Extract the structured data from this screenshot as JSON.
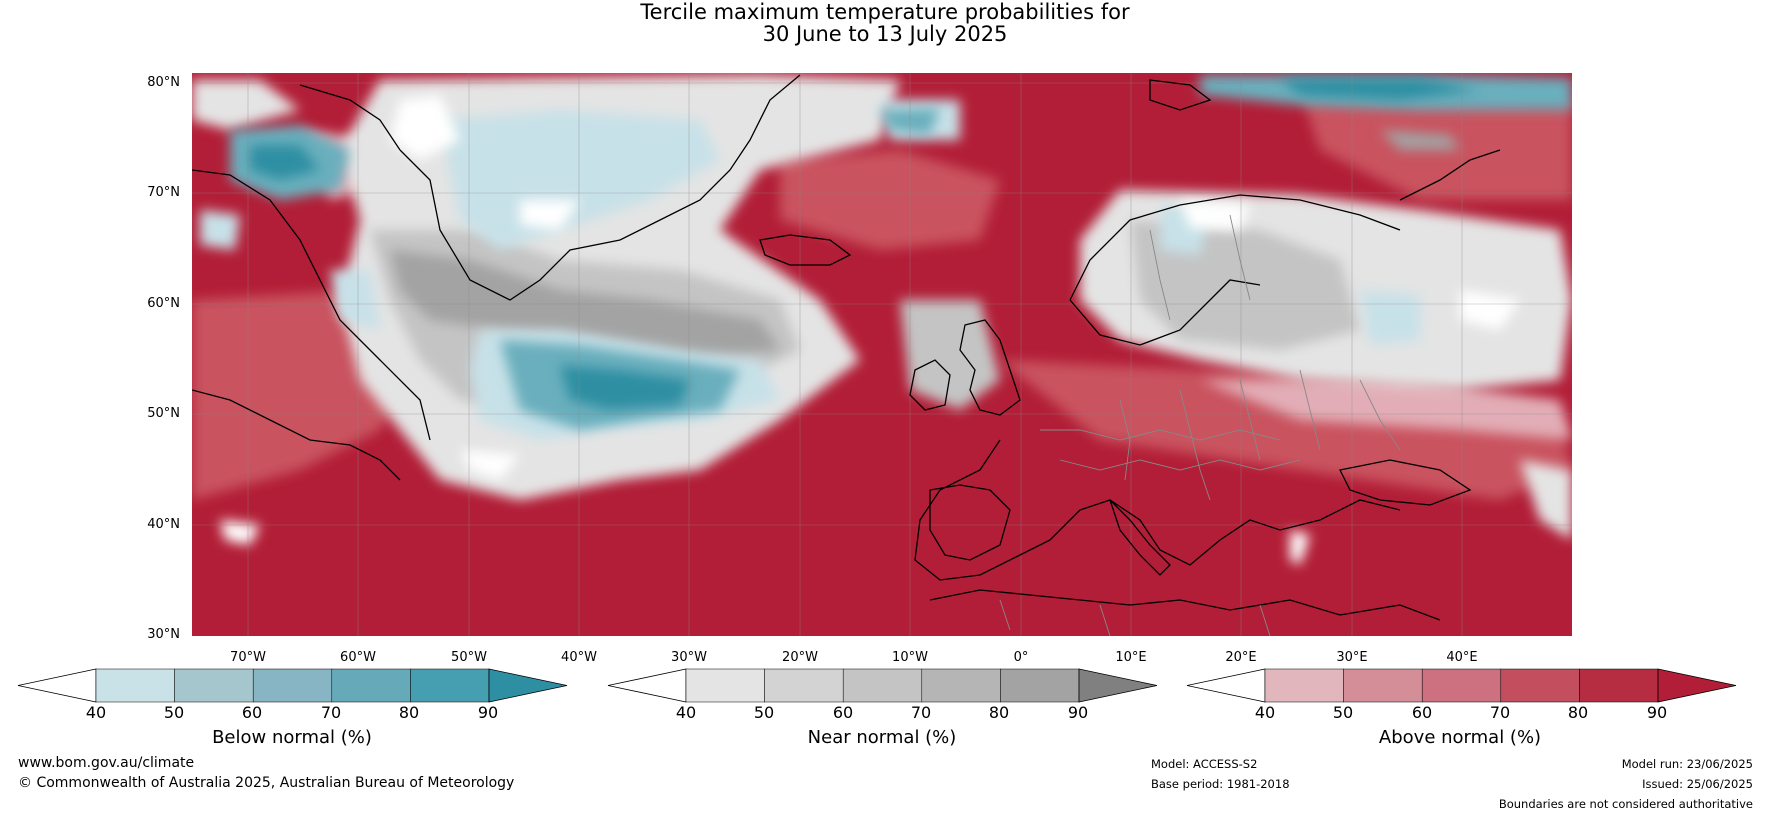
{
  "title": {
    "line1": "Tercile maximum temperature probabilities for",
    "line2": "30 June to 13 July 2025"
  },
  "map": {
    "latitude_labels": [
      "80°N",
      "70°N",
      "60°N",
      "50°N",
      "40°N",
      "30°N"
    ],
    "longitude_labels": [
      "70°W",
      "60°W",
      "50°W",
      "40°W",
      "30°W",
      "20°W",
      "10°W",
      "0°",
      "10°E",
      "20°E",
      "30°E",
      "40°E"
    ],
    "colors": {
      "above_dark": "#b21e37",
      "above_mid": "#c9535f",
      "above_light": "#e2adb6",
      "below_dark": "#2e8fa3",
      "below_mid": "#6aafbd",
      "below_light": "#c7e1e8",
      "near_dark": "#a3a3a3",
      "near_mid": "#c4c4c4",
      "near_light": "#e4e4e4",
      "coast": "#000000",
      "border": "#888888"
    }
  },
  "colorbars": [
    {
      "name": "Below normal (%)",
      "ticks": [
        "40",
        "50",
        "60",
        "70",
        "80",
        "90"
      ],
      "colors": [
        "#ffffff",
        "#c9e2e7",
        "#a5c6cd",
        "#87b5c3",
        "#66aab9",
        "#469fb1",
        "#2e8fa3"
      ]
    },
    {
      "name": "Near normal (%)",
      "ticks": [
        "40",
        "50",
        "60",
        "70",
        "80",
        "90"
      ],
      "colors": [
        "#ffffff",
        "#e4e4e4",
        "#d3d3d3",
        "#c4c4c4",
        "#b4b5b4",
        "#a3a3a3",
        "#808080"
      ]
    },
    {
      "name": "Above normal (%)",
      "ticks": [
        "40",
        "50",
        "60",
        "70",
        "80",
        "90"
      ],
      "colors": [
        "#ffffff",
        "#e2b6bd",
        "#d48e97",
        "#cd7180",
        "#c34e5e",
        "#b62d41",
        "#b21e37"
      ]
    }
  ],
  "footer": {
    "website": "www.bom.gov.au/climate",
    "copyright": "© Commonwealth of Australia 2025, Australian Bureau of Meteorology",
    "model": "Model: ACCESS-S2",
    "base_period": "Base period: 1981-2018",
    "model_run": "Model run: 23/06/2025",
    "issued": "Issued: 25/06/2025",
    "disclaimer": "Boundaries are not considered authoritative"
  }
}
